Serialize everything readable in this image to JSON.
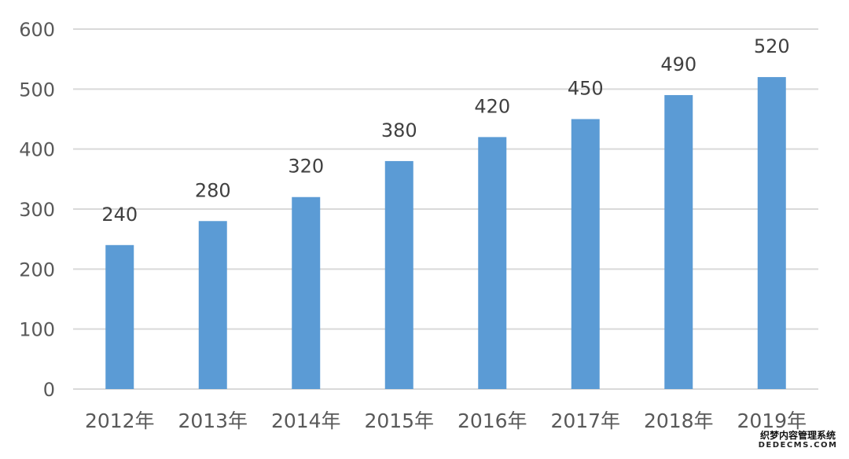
{
  "chart_data": {
    "type": "bar",
    "categories": [
      "2012年",
      "2013年",
      "2014年",
      "2015年",
      "2016年",
      "2017年",
      "2018年",
      "2019年"
    ],
    "values": [
      240,
      280,
      320,
      380,
      420,
      450,
      490,
      520
    ],
    "title": "",
    "xlabel": "",
    "ylabel": "",
    "ylim": [
      0,
      600
    ],
    "yticks": [
      0,
      100,
      200,
      300,
      400,
      500,
      600
    ],
    "grid": true,
    "legend": "none",
    "bar_color": "#5b9bd5",
    "gridline_color": "#d9d9d9",
    "label_color": "#404040",
    "tick_label_color": "#595959"
  },
  "watermark": {
    "line1": "织梦内容管理系统",
    "line2": "DEDECMS.COM"
  }
}
